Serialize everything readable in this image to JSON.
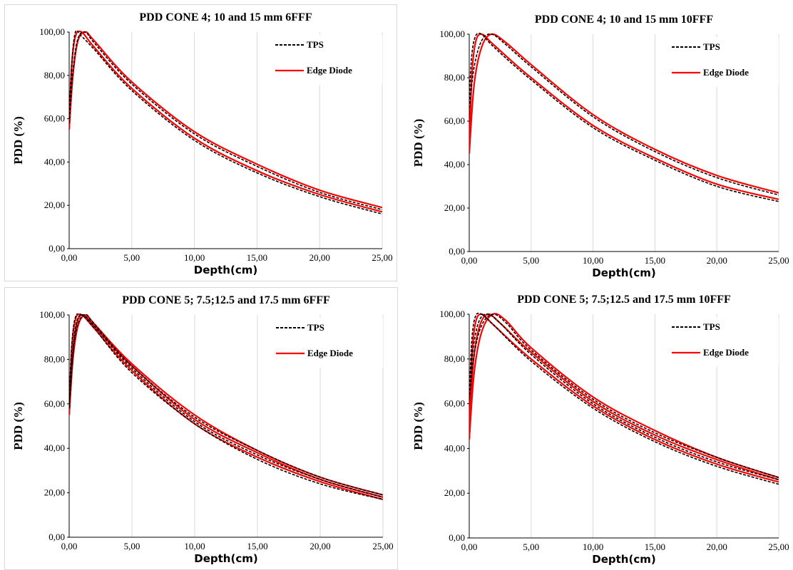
{
  "chart_data": [
    {
      "type": "line",
      "title": "PDD CONE 4; 10 and 15 mm 6FFF",
      "xlabel": "Depth(cm)",
      "ylabel": "PDD (%)",
      "xlim": [
        0,
        25
      ],
      "ylim": [
        0,
        100
      ],
      "x_ticks": [
        "0,00",
        "5,00",
        "10,00",
        "15,00",
        "20,00",
        "25,00"
      ],
      "y_ticks": [
        "0,00",
        "20,00",
        "40,00",
        "60,00",
        "80,00",
        "100,00"
      ],
      "grid": "vertical",
      "legend_position": "top-right",
      "legend": [
        {
          "label": "TPS",
          "color": "#000000",
          "dash": true
        },
        {
          "label": "Edge Diode",
          "color": "#ff0000",
          "dash": false
        }
      ],
      "series": [
        {
          "legend": "TPS",
          "color": "#000000",
          "dashed": true,
          "x": [
            0,
            0.2,
            0.5,
            1,
            2,
            5,
            10,
            15,
            20,
            25
          ],
          "y": [
            60,
            85,
            100,
            98,
            92,
            73,
            50,
            35,
            24,
            16
          ]
        },
        {
          "legend": "Edge Diode",
          "color": "#ff0000",
          "dashed": false,
          "x": [
            0,
            0.2,
            0.5,
            1,
            2,
            5,
            10,
            15,
            20,
            25
          ],
          "y": [
            55,
            84,
            98,
            100,
            93,
            74,
            51,
            36,
            25,
            17
          ]
        },
        {
          "legend": "TPS",
          "color": "#000000",
          "dashed": true,
          "x": [
            0,
            0.3,
            0.7,
            1.3,
            2,
            5,
            10,
            15,
            20,
            25
          ],
          "y": [
            58,
            82,
            97,
            100,
            95,
            76,
            53,
            38,
            26,
            18
          ]
        },
        {
          "legend": "Edge Diode",
          "color": "#ff0000",
          "dashed": false,
          "x": [
            0,
            0.3,
            0.7,
            1.3,
            2,
            5,
            10,
            15,
            20,
            25
          ],
          "y": [
            55,
            80,
            96,
            100,
            96,
            77,
            54,
            39,
            27,
            19
          ]
        }
      ]
    },
    {
      "type": "line",
      "title": "PDD CONE 4; 10 and 15 mm 10FFF",
      "xlabel": "Depth(cm)",
      "ylabel": "PDD (%)",
      "xlim": [
        0,
        25
      ],
      "ylim": [
        0,
        100
      ],
      "x_ticks": [
        "0,00",
        "5,00",
        "10,00",
        "15,00",
        "20,00",
        "25,00"
      ],
      "y_ticks": [
        "0,00",
        "20,00",
        "40,00",
        "60,00",
        "80,00",
        "100,00"
      ],
      "grid": "vertical",
      "legend_position": "top-right",
      "legend": [
        {
          "label": "TPS",
          "color": "#000000",
          "dash": true
        },
        {
          "label": "Edge Diode",
          "color": "#ff0000",
          "dash": false
        }
      ],
      "series": [
        {
          "legend": "TPS",
          "color": "#000000",
          "dashed": true,
          "x": [
            0,
            0.2,
            0.5,
            1,
            2,
            5,
            10,
            15,
            20,
            25
          ],
          "y": [
            70,
            90,
            99,
            100,
            94,
            79,
            57,
            42,
            30,
            23
          ]
        },
        {
          "legend": "Edge Diode",
          "color": "#ff0000",
          "dashed": false,
          "x": [
            0,
            0.2,
            0.5,
            1,
            2,
            5,
            10,
            15,
            20,
            25
          ],
          "y": [
            46,
            80,
            96,
            100,
            95,
            80,
            58,
            43,
            31,
            24
          ]
        },
        {
          "legend": "TPS",
          "color": "#000000",
          "dashed": true,
          "x": [
            0,
            0.4,
            1,
            1.8,
            3,
            5,
            10,
            15,
            20,
            25
          ],
          "y": [
            66,
            85,
            97,
            100,
            95,
            85,
            62,
            46,
            34,
            26
          ]
        },
        {
          "legend": "Edge Diode",
          "color": "#ff0000",
          "dashed": false,
          "x": [
            0,
            0.4,
            1,
            1.8,
            3,
            5,
            10,
            15,
            20,
            25
          ],
          "y": [
            45,
            77,
            94,
            100,
            96,
            86,
            63,
            47,
            35,
            27
          ]
        }
      ]
    },
    {
      "type": "line",
      "title": "PDD CONE 5; 7.5;12.5 and 17.5 mm 6FFF",
      "xlabel": "Depth(cm)",
      "ylabel": "PDD (%)",
      "xlim": [
        0,
        25
      ],
      "ylim": [
        0,
        100
      ],
      "x_ticks": [
        "0,00",
        "5,00",
        "10,00",
        "15,00",
        "20,00",
        "25,00"
      ],
      "y_ticks": [
        "0,00",
        "20,00",
        "40,00",
        "60,00",
        "80,00",
        "100,00"
      ],
      "grid": "vertical",
      "legend_position": "top-right",
      "legend": [
        {
          "label": "TPS",
          "color": "#000000",
          "dash": true
        },
        {
          "label": "Edge Diode",
          "color": "#ff0000",
          "dash": false
        }
      ],
      "series": [
        {
          "legend": "TPS",
          "color": "#000000",
          "dashed": true,
          "x": [
            0,
            0.2,
            0.5,
            1,
            2,
            5,
            10,
            15,
            20,
            25
          ],
          "y": [
            60,
            86,
            99,
            100,
            94,
            74,
            51,
            35,
            24,
            17
          ]
        },
        {
          "legend": "Edge Diode",
          "color": "#ff0000",
          "dashed": false,
          "x": [
            0,
            0.2,
            0.5,
            1,
            2,
            5,
            10,
            15,
            20,
            25
          ],
          "y": [
            55,
            84,
            98,
            100,
            94,
            75,
            51,
            36,
            25,
            17
          ]
        },
        {
          "legend": "TPS",
          "color": "#000000",
          "dashed": true,
          "x": [
            0,
            0.3,
            0.6,
            1.1,
            2,
            5,
            10,
            15,
            20,
            25
          ],
          "y": [
            59,
            84,
            97,
            100,
            95,
            76,
            52,
            37,
            26,
            18
          ]
        },
        {
          "legend": "Edge Diode",
          "color": "#ff0000",
          "dashed": false,
          "x": [
            0,
            0.3,
            0.6,
            1.1,
            2,
            5,
            10,
            15,
            20,
            25
          ],
          "y": [
            55,
            82,
            96,
            100,
            95,
            77,
            53,
            38,
            26,
            18
          ]
        },
        {
          "legend": "TPS",
          "color": "#000000",
          "dashed": true,
          "x": [
            0,
            0.3,
            0.7,
            1.3,
            2,
            5,
            10,
            15,
            20,
            25
          ],
          "y": [
            58,
            82,
            96,
            100,
            96,
            77,
            54,
            39,
            27,
            19
          ]
        },
        {
          "legend": "Edge Diode",
          "color": "#ff0000",
          "dashed": false,
          "x": [
            0,
            0.3,
            0.7,
            1.3,
            2,
            5,
            10,
            15,
            20,
            25
          ],
          "y": [
            55,
            80,
            95,
            100,
            96,
            78,
            55,
            39,
            27,
            19
          ]
        }
      ]
    },
    {
      "type": "line",
      "title": "PDD CONE 5; 7.5;12.5 and 17.5 mm 10FFF",
      "xlabel": "Depth(cm)",
      "ylabel": "PDD (%)",
      "xlim": [
        0,
        25
      ],
      "ylim": [
        0,
        100
      ],
      "x_ticks": [
        "0,00",
        "5,00",
        "10,00",
        "15,00",
        "20,00",
        "25,00"
      ],
      "y_ticks": [
        "0,00",
        "20,00",
        "40,00",
        "60,00",
        "80,00",
        "100,00"
      ],
      "grid": "vertical",
      "legend_position": "top-right",
      "legend": [
        {
          "label": "TPS",
          "color": "#000000",
          "dash": true
        },
        {
          "label": "Edge Diode",
          "color": "#ff0000",
          "dash": false
        }
      ],
      "series": [
        {
          "legend": "TPS",
          "color": "#000000",
          "dashed": true,
          "x": [
            0,
            0.2,
            0.5,
            1,
            2,
            5,
            10,
            15,
            20,
            25
          ],
          "y": [
            62,
            88,
            99,
            100,
            95,
            79,
            58,
            43,
            32,
            24
          ]
        },
        {
          "legend": "Edge Diode",
          "color": "#ff0000",
          "dashed": false,
          "x": [
            0,
            0.2,
            0.5,
            1,
            2,
            5,
            10,
            15,
            20,
            25
          ],
          "y": [
            44,
            80,
            96,
            100,
            95,
            80,
            59,
            44,
            33,
            25
          ]
        },
        {
          "legend": "TPS",
          "color": "#000000",
          "dashed": true,
          "x": [
            0,
            0.3,
            0.8,
            1.5,
            2.5,
            5,
            10,
            15,
            20,
            25
          ],
          "y": [
            62,
            84,
            97,
            100,
            96,
            82,
            60,
            45,
            34,
            26
          ]
        },
        {
          "legend": "Edge Diode",
          "color": "#ff0000",
          "dashed": false,
          "x": [
            0,
            0.3,
            0.8,
            1.5,
            2.5,
            5,
            10,
            15,
            20,
            25
          ],
          "y": [
            44,
            77,
            94,
            100,
            96,
            83,
            61,
            46,
            35,
            26
          ]
        },
        {
          "legend": "TPS",
          "color": "#000000",
          "dashed": true,
          "x": [
            0,
            0.4,
            1,
            1.9,
            3,
            5,
            10,
            15,
            20,
            25
          ],
          "y": [
            62,
            82,
            95,
            100,
            96,
            84,
            62,
            47,
            36,
            27
          ]
        },
        {
          "legend": "Edge Diode",
          "color": "#ff0000",
          "dashed": false,
          "x": [
            0,
            0.4,
            1,
            1.9,
            3,
            5,
            10,
            15,
            20,
            25
          ],
          "y": [
            44,
            74,
            92,
            100,
            97,
            85,
            63,
            48,
            36,
            27
          ]
        }
      ]
    }
  ]
}
